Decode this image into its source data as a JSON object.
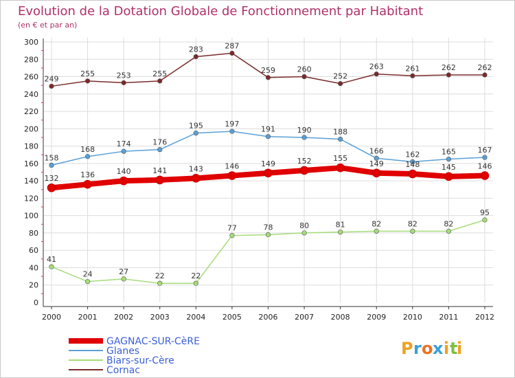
{
  "header": {
    "title": "Evolution de la Dotation Globale de Fonctionnement par Habitant",
    "subtitle": "(en € et par an)"
  },
  "brand": {
    "letters": [
      "P",
      "r",
      "o",
      "x",
      "i",
      "t",
      "i"
    ],
    "letter_colors": [
      "#f0a020",
      "#3aa0d8",
      "#f07020",
      "#3aa0d8",
      "#f0a020",
      "#7cc040",
      "#f0a020"
    ]
  },
  "chart_data": {
    "type": "line",
    "title": "Evolution de la Dotation Globale de Fonctionnement par Habitant",
    "subtitle": "(en € et par an)",
    "xlabel": "",
    "ylabel": "",
    "x": [
      "2000",
      "2001",
      "2002",
      "2003",
      "2004",
      "2005",
      "2006",
      "2007",
      "2008",
      "2009",
      "2010",
      "2011",
      "2012"
    ],
    "ylim": [
      0,
      300
    ],
    "yticks": [
      0,
      20,
      40,
      60,
      80,
      100,
      120,
      140,
      160,
      180,
      200,
      220,
      240,
      260,
      280,
      300
    ],
    "grid": true,
    "legend_position": "bottom-left",
    "series": [
      {
        "name": "GAGNAC-SUR-CèRE",
        "color": "#e00000",
        "highlight": true,
        "values": [
          132,
          136,
          140,
          141,
          143,
          146,
          149,
          152,
          155,
          149,
          148,
          145,
          146
        ]
      },
      {
        "name": "Glanes",
        "color": "#5a9fd6",
        "highlight": false,
        "values": [
          158,
          168,
          174,
          176,
          195,
          197,
          191,
          190,
          188,
          166,
          162,
          165,
          167
        ]
      },
      {
        "name": "Biars-sur-Cère",
        "color": "#a6dc7a",
        "highlight": false,
        "values": [
          41,
          24,
          27,
          22,
          22,
          77,
          78,
          80,
          81,
          82,
          82,
          82,
          95
        ]
      },
      {
        "name": "Cornac",
        "color": "#7a2a2a",
        "highlight": false,
        "values": [
          249,
          255,
          253,
          255,
          283,
          287,
          259,
          260,
          252,
          263,
          261,
          262,
          262
        ]
      }
    ]
  }
}
